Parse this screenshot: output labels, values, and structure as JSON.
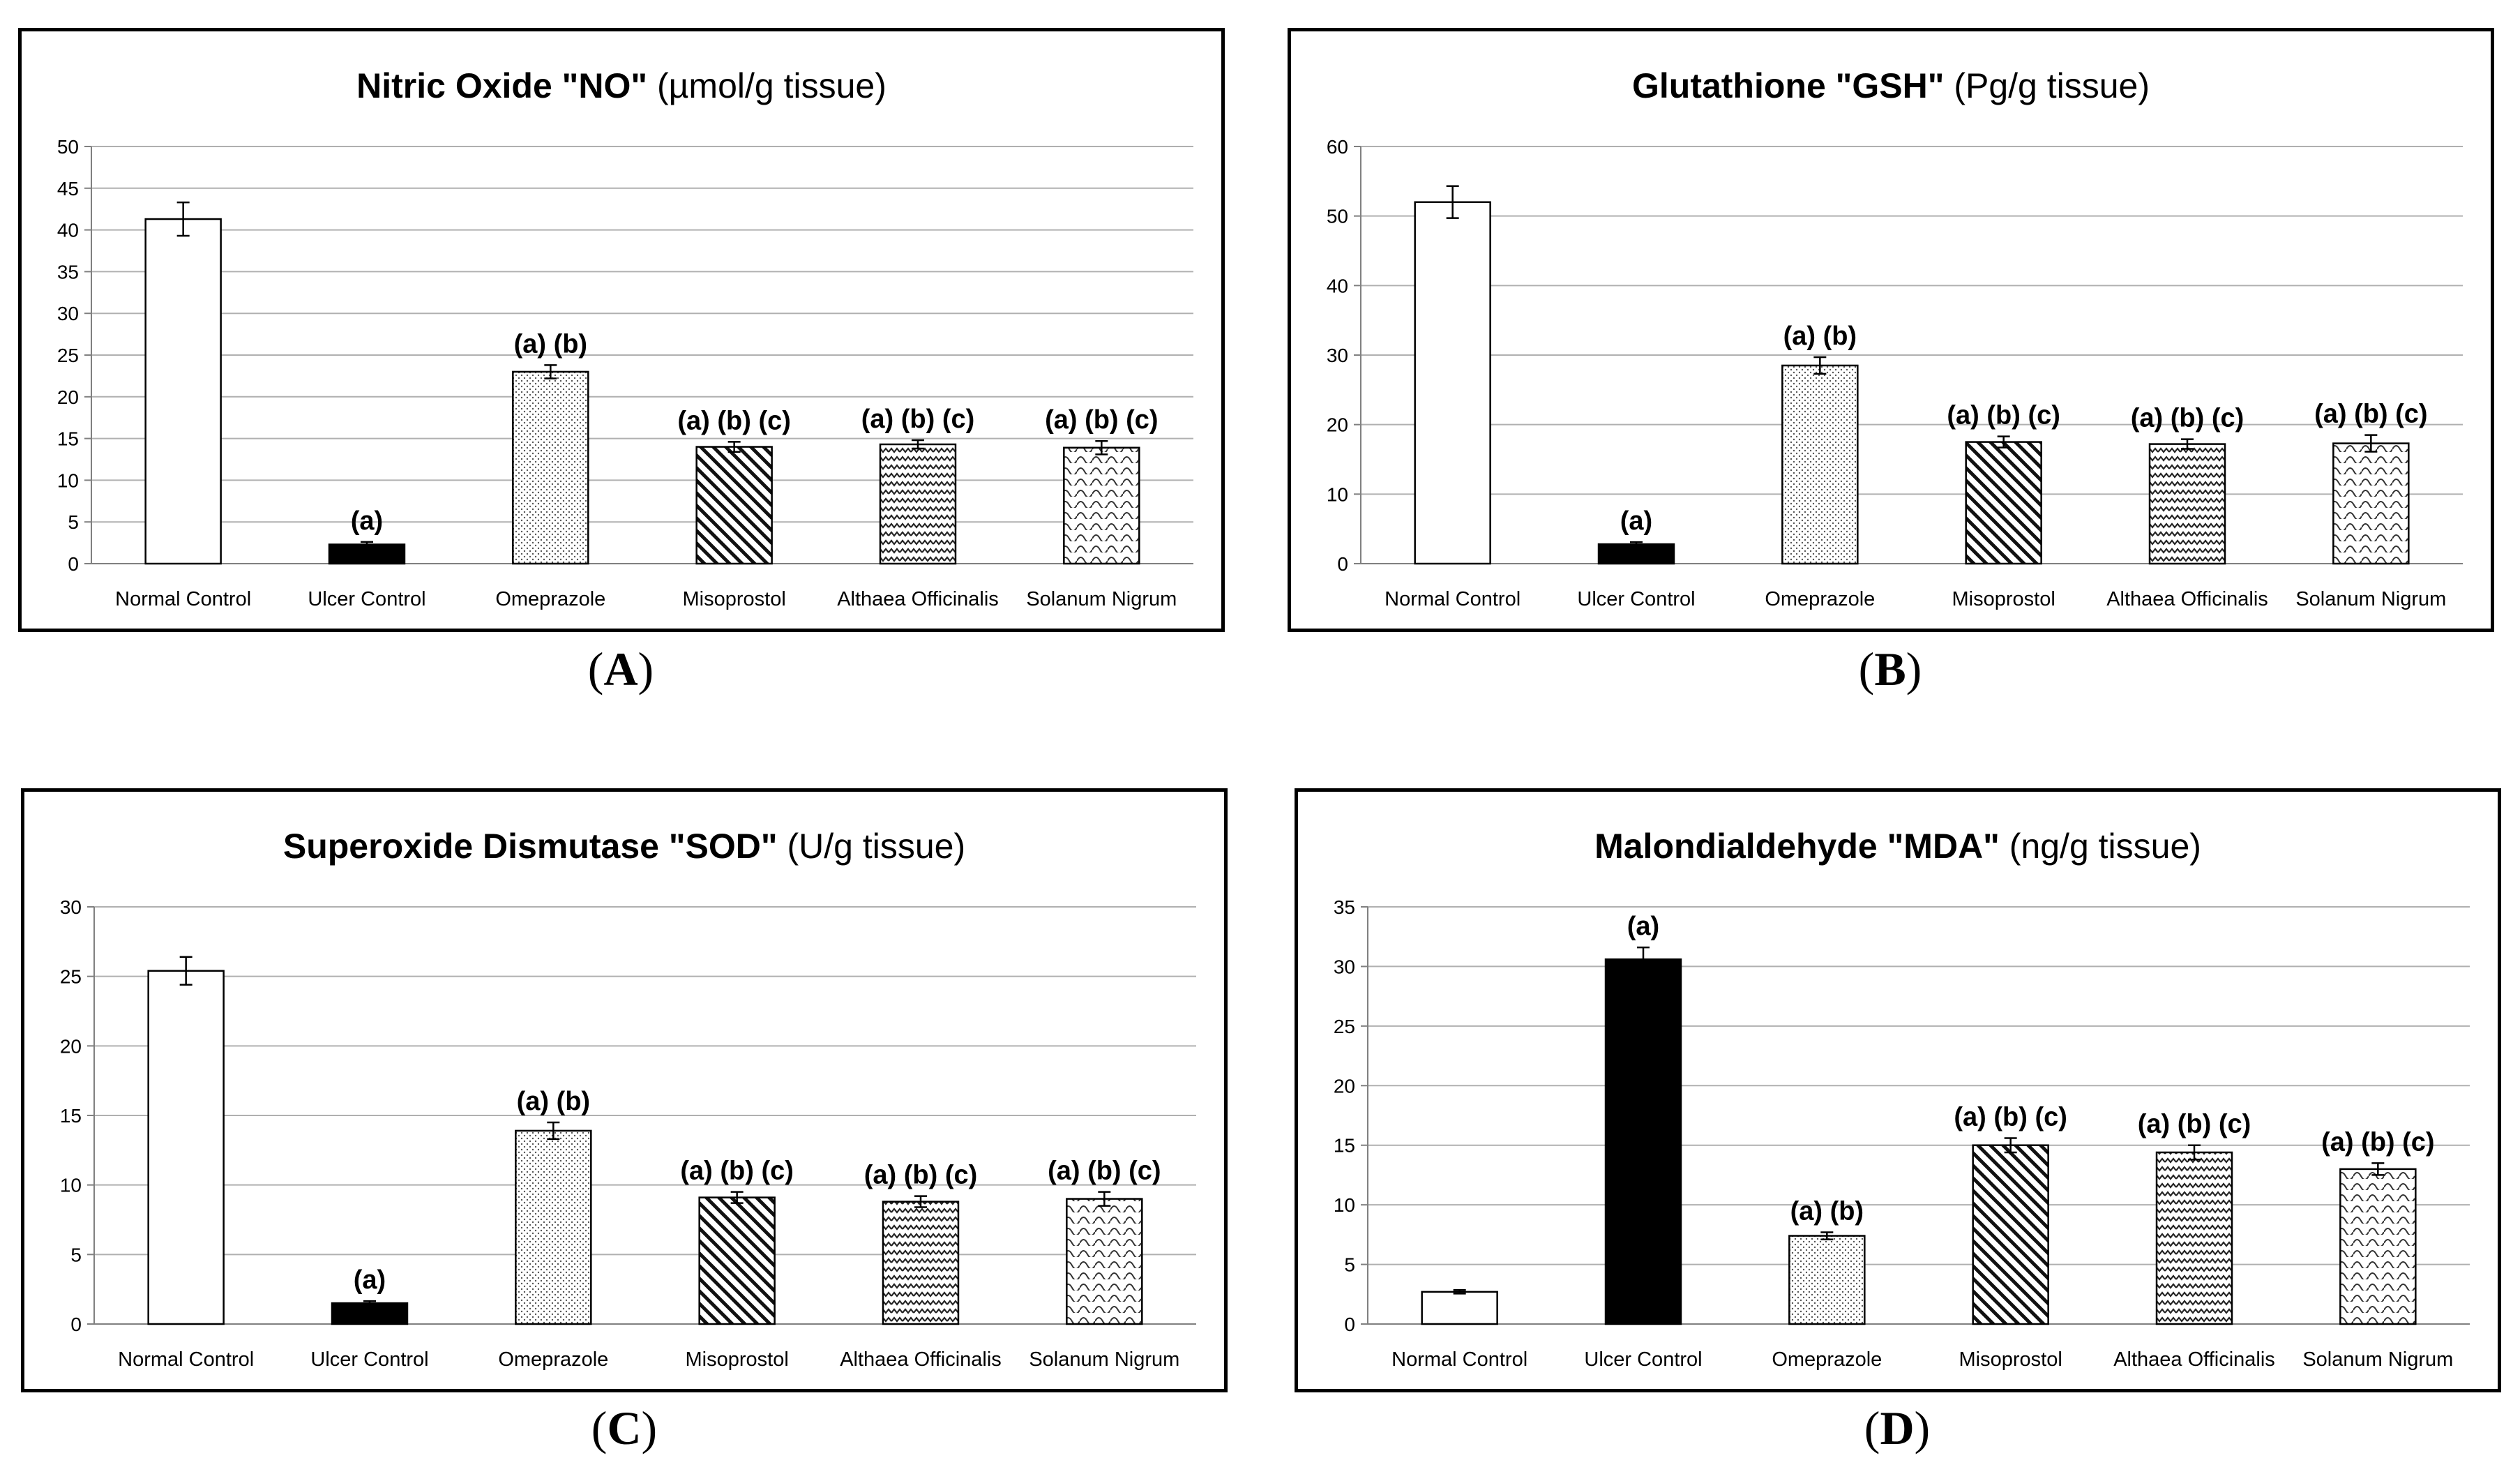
{
  "figure": {
    "panel_labels": [
      {
        "open": "(",
        "letter": "A",
        "close": ")"
      },
      {
        "open": "(",
        "letter": "B",
        "close": ")"
      },
      {
        "open": "(",
        "letter": "C",
        "close": ")"
      },
      {
        "open": "(",
        "letter": "D",
        "close": ")"
      }
    ]
  },
  "colors": {
    "frame": "#000000",
    "grid": "#b0b0b0",
    "bar_stroke": "#000000",
    "ulcer_fill": "#000000",
    "normal_fill": "#ffffff"
  },
  "chart_data": [
    {
      "type": "bar",
      "title_bold": "Nitric Oxide \"NO\"",
      "title_unit": "(µmol/g tissue)",
      "categories": [
        "Normal Control",
        "Ulcer Control",
        "Omeprazole",
        "Misoprostol",
        "Althaea Officinalis",
        "Solanum Nigrum"
      ],
      "values": [
        41.3,
        2.3,
        23.0,
        14.0,
        14.3,
        13.9
      ],
      "errors": [
        2.0,
        0.3,
        0.8,
        0.6,
        0.5,
        0.8
      ],
      "annotations": [
        "",
        "(a)",
        "(a) (b)",
        "(a) (b) (c)",
        "(a) (b) (c)",
        "(a) (b) (c)"
      ],
      "patterns": [
        "white",
        "black",
        "dots",
        "diagonal",
        "zigzag",
        "waves"
      ],
      "ylim": [
        0,
        50
      ],
      "yticks": [
        0,
        5,
        10,
        15,
        20,
        25,
        30,
        35,
        40,
        45,
        50
      ],
      "xlabel": "",
      "ylabel": "",
      "grid": true,
      "legend": "none"
    },
    {
      "type": "bar",
      "title_bold": "Glutathione \"GSH\"",
      "title_unit": "(Pg/g tissue)",
      "categories": [
        "Normal Control",
        "Ulcer Control",
        "Omeprazole",
        "Misoprostol",
        "Althaea Officinalis",
        "Solanum Nigrum"
      ],
      "values": [
        52.0,
        2.8,
        28.5,
        17.5,
        17.2,
        17.3
      ],
      "errors": [
        2.3,
        0.3,
        1.2,
        0.8,
        0.7,
        1.2
      ],
      "annotations": [
        "",
        "(a)",
        "(a) (b)",
        "(a) (b) (c)",
        "(a) (b) (c)",
        "(a) (b) (c)"
      ],
      "patterns": [
        "white",
        "black",
        "dots",
        "diagonal",
        "zigzag",
        "waves"
      ],
      "ylim": [
        0,
        60
      ],
      "yticks": [
        0,
        10,
        20,
        30,
        40,
        50,
        60
      ],
      "xlabel": "",
      "ylabel": "",
      "grid": true,
      "legend": "none"
    },
    {
      "type": "bar",
      "title_bold": "Superoxide Dismutase \"SOD\"",
      "title_unit": "(U/g tissue)",
      "categories": [
        "Normal Control",
        "Ulcer Control",
        "Omeprazole",
        "Misoprostol",
        "Althaea Officinalis",
        "Solanum Nigrum"
      ],
      "values": [
        25.4,
        1.5,
        13.9,
        9.1,
        8.8,
        9.0
      ],
      "errors": [
        1.0,
        0.15,
        0.6,
        0.4,
        0.4,
        0.5
      ],
      "annotations": [
        "",
        "(a)",
        "(a) (b)",
        "(a) (b) (c)",
        "(a) (b) (c)",
        "(a) (b) (c)"
      ],
      "patterns": [
        "white",
        "black",
        "dots",
        "diagonal",
        "zigzag",
        "waves"
      ],
      "ylim": [
        0,
        30
      ],
      "yticks": [
        0,
        5,
        10,
        15,
        20,
        25,
        30
      ],
      "xlabel": "",
      "ylabel": "",
      "grid": true,
      "legend": "none"
    },
    {
      "type": "bar",
      "title_bold": "Malondialdehyde \"MDA\"",
      "title_unit": "(ng/g tissue)",
      "categories": [
        "Normal Control",
        "Ulcer Control",
        "Omeprazole",
        "Misoprostol",
        "Althaea Officinalis",
        "Solanum Nigrum"
      ],
      "values": [
        2.7,
        30.6,
        7.4,
        15.0,
        14.4,
        13.0
      ],
      "errors": [
        0.15,
        1.0,
        0.3,
        0.6,
        0.6,
        0.5
      ],
      "annotations": [
        "",
        "(a)",
        "(a) (b)",
        "(a) (b) (c)",
        "(a) (b) (c)",
        "(a) (b) (c)"
      ],
      "patterns": [
        "white",
        "black",
        "dots",
        "diagonal",
        "zigzag",
        "waves"
      ],
      "ylim": [
        0,
        35
      ],
      "yticks": [
        0,
        5,
        10,
        15,
        20,
        25,
        30,
        35
      ],
      "xlabel": "",
      "ylabel": "",
      "grid": true,
      "legend": "none"
    }
  ]
}
